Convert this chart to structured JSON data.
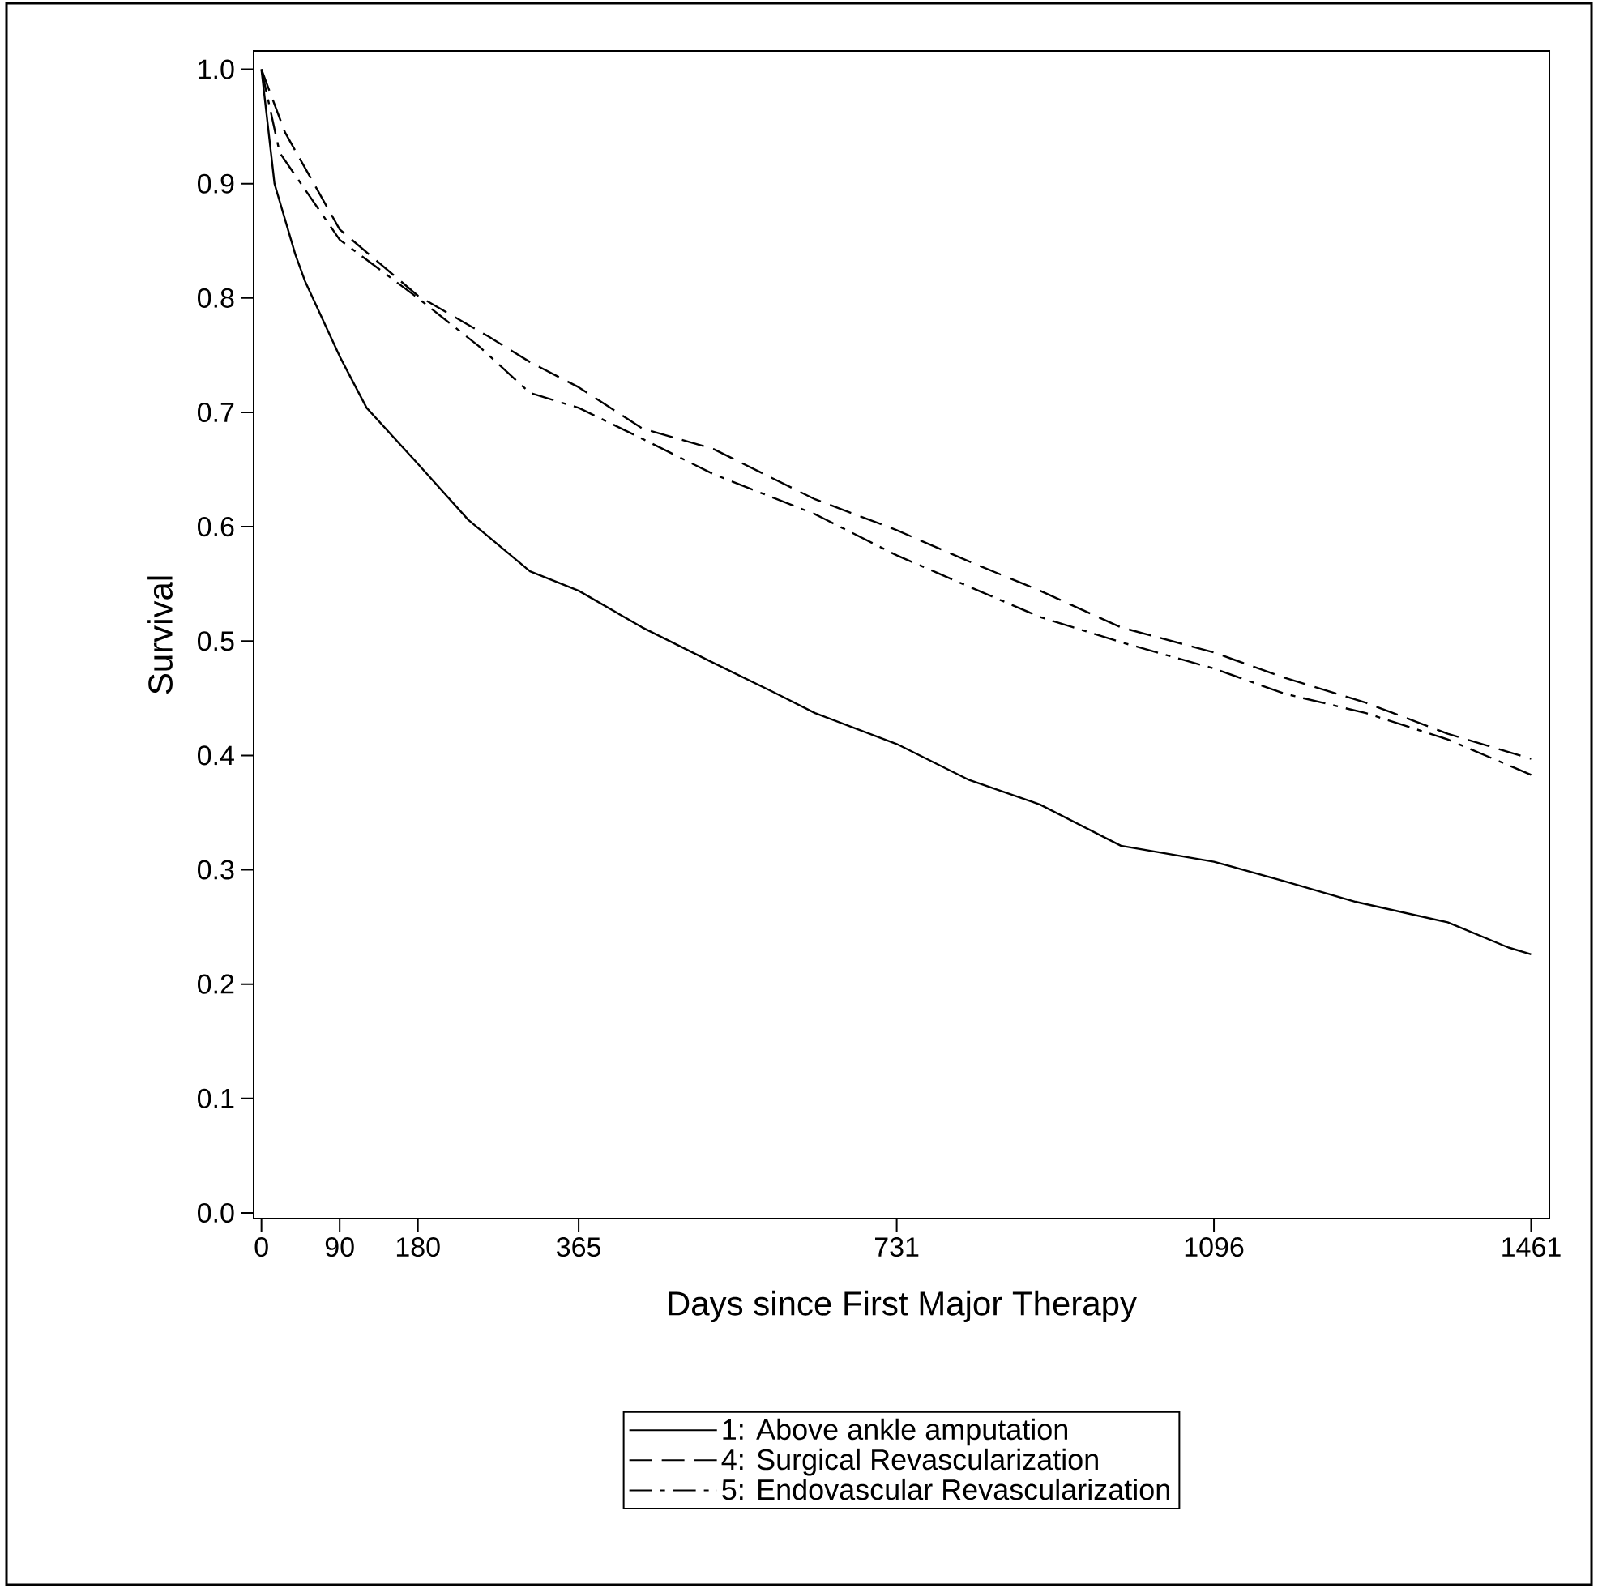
{
  "chart_data": {
    "type": "line",
    "xlabel": "Days since First Major Therapy",
    "ylabel": "Survival",
    "xlim": [
      -9,
      1482
    ],
    "ylim": [
      -0.005,
      1.016
    ],
    "xticks": [
      0,
      90,
      180,
      365,
      731,
      1096,
      1461
    ],
    "yticks": [
      {
        "value": 0,
        "label": "0.0"
      },
      0.1,
      0.2,
      0.3,
      0.4,
      0.5,
      0.6,
      0.7,
      0.8,
      0.9,
      {
        "value": 1,
        "label": "1.0"
      }
    ],
    "grid": false,
    "legend": "bottom",
    "marker": "none",
    "series": [
      {
        "name": "1: Above ankle amputation",
        "color": "#000000",
        "line_style": "solid",
        "x": [
          0,
          15,
          39,
          50,
          90,
          121,
          180,
          238,
          309,
          365,
          438,
          520,
          590,
          637,
          731,
          813,
          896,
          989,
          1096,
          1177,
          1259,
          1365,
          1435,
          1461
        ],
        "values": [
          1.0,
          0.9,
          0.838,
          0.815,
          0.749,
          0.704,
          0.655,
          0.606,
          0.561,
          0.544,
          0.512,
          0.481,
          0.455,
          0.437,
          0.41,
          0.379,
          0.357,
          0.321,
          0.307,
          0.29,
          0.272,
          0.254,
          0.232,
          0.226
        ]
      },
      {
        "name": "4: Surgical Revascularization",
        "color": "#000000",
        "line_style": "dashed",
        "x": [
          0,
          27,
          90,
          180,
          262,
          309,
          365,
          438,
          520,
          637,
          731,
          813,
          896,
          989,
          1096,
          1177,
          1271,
          1365,
          1461
        ],
        "values": [
          1.0,
          0.945,
          0.86,
          0.802,
          0.766,
          0.744,
          0.722,
          0.686,
          0.668,
          0.624,
          0.597,
          0.57,
          0.544,
          0.512,
          0.49,
          0.468,
          0.446,
          0.419,
          0.397
        ]
      },
      {
        "name": "5: Endovascular Revascularization",
        "color": "#000000",
        "line_style": "dashdot",
        "x": [
          0,
          21,
          90,
          180,
          250,
          309,
          365,
          438,
          520,
          637,
          731,
          813,
          896,
          989,
          1096,
          1177,
          1271,
          1365,
          1461
        ],
        "values": [
          1.0,
          0.927,
          0.851,
          0.8,
          0.758,
          0.717,
          0.704,
          0.677,
          0.646,
          0.611,
          0.575,
          0.548,
          0.521,
          0.499,
          0.476,
          0.454,
          0.437,
          0.414,
          0.383
        ]
      }
    ]
  }
}
